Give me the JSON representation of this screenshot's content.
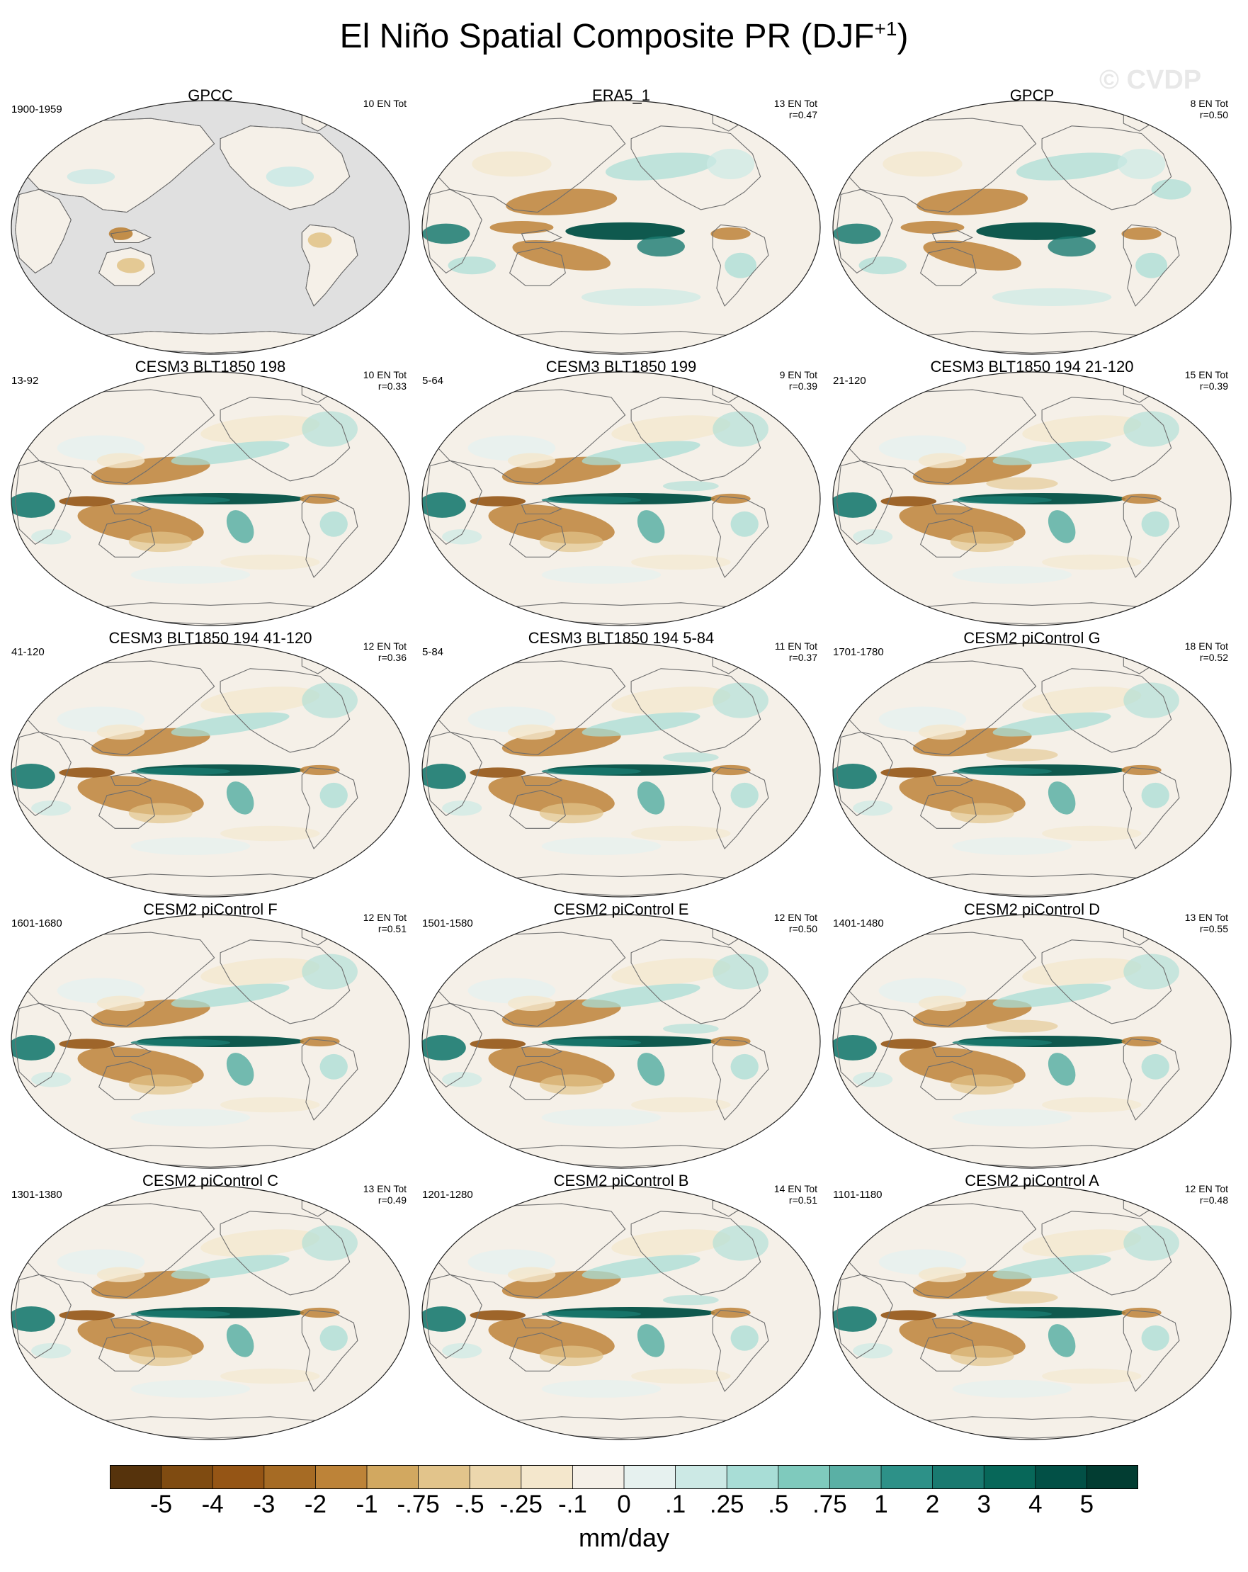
{
  "title": {
    "main": "El Niño Spatial Composite PR (DJF",
    "sup": "+1",
    "close": ")"
  },
  "watermark": "© CVDP",
  "chart_data": {
    "type": "heatmap",
    "projection": "Robinson (Pacific-centered)",
    "variable": "Precipitation composite anomaly",
    "season": "DJF+1",
    "units": "mm/day",
    "colorbar": {
      "levels": [
        "-5",
        "-4",
        "-3",
        "-2",
        "-1",
        "-.75",
        "-.5",
        "-.25",
        "-.1",
        "0",
        ".1",
        ".25",
        ".5",
        ".75",
        "1",
        "2",
        "3",
        "4",
        "5"
      ],
      "colors": [
        "#56330c",
        "#7f4b11",
        "#955515",
        "#a66b24",
        "#bd8338",
        "#d2a860",
        "#e2c48b",
        "#ecd7ad",
        "#f4e7cc",
        "#f5f0e8",
        "#e6f1ef",
        "#cce9e5",
        "#a8ddd6",
        "#7fcabd",
        "#5ab0a5",
        "#2d9188",
        "#197a70",
        "#076759",
        "#025046",
        "#023d32"
      ]
    },
    "panels": [
      {
        "title": "GPCC",
        "years": "1900-1959",
        "count": "10 EN Tot",
        "r": "",
        "style": "gpcc"
      },
      {
        "title": "ERA5_1",
        "years": "",
        "count": "13 EN Tot",
        "r": "r=0.47",
        "style": "obs"
      },
      {
        "title": "GPCP",
        "years": "",
        "count": "8 EN Tot",
        "r": "r=0.50",
        "style": "obs"
      },
      {
        "title": "CESM3 BLT1850 198",
        "years": "13-92",
        "count": "10 EN Tot",
        "r": "r=0.33",
        "style": "model"
      },
      {
        "title": "CESM3 BLT1850 199",
        "years": "5-64",
        "count": "9 EN Tot",
        "r": "r=0.39",
        "style": "model"
      },
      {
        "title": "CESM3 BLT1850 194 21-120",
        "years": "21-120",
        "count": "15 EN Tot",
        "r": "r=0.39",
        "style": "model"
      },
      {
        "title": "CESM3 BLT1850 194 41-120",
        "years": "41-120",
        "count": "12 EN Tot",
        "r": "r=0.36",
        "style": "model"
      },
      {
        "title": "CESM3 BLT1850 194 5-84",
        "years": "5-84",
        "count": "11 EN Tot",
        "r": "r=0.37",
        "style": "model"
      },
      {
        "title": "CESM2 piControl G",
        "years": "1701-1780",
        "count": "18 EN Tot",
        "r": "r=0.52",
        "style": "model"
      },
      {
        "title": "CESM2 piControl F",
        "years": "1601-1680",
        "count": "12 EN Tot",
        "r": "r=0.51",
        "style": "model"
      },
      {
        "title": "CESM2 piControl E",
        "years": "1501-1580",
        "count": "12 EN Tot",
        "r": "r=0.50",
        "style": "model"
      },
      {
        "title": "CESM2 piControl D",
        "years": "1401-1480",
        "count": "13 EN Tot",
        "r": "r=0.55",
        "style": "model"
      },
      {
        "title": "CESM2 piControl C",
        "years": "1301-1380",
        "count": "13 EN Tot",
        "r": "r=0.49",
        "style": "model"
      },
      {
        "title": "CESM2 piControl B",
        "years": "1201-1280",
        "count": "14 EN Tot",
        "r": "r=0.51",
        "style": "model"
      },
      {
        "title": "CESM2 piControl A",
        "years": "1101-1180",
        "count": "12 EN Tot",
        "r": "r=0.48",
        "style": "model"
      }
    ]
  }
}
